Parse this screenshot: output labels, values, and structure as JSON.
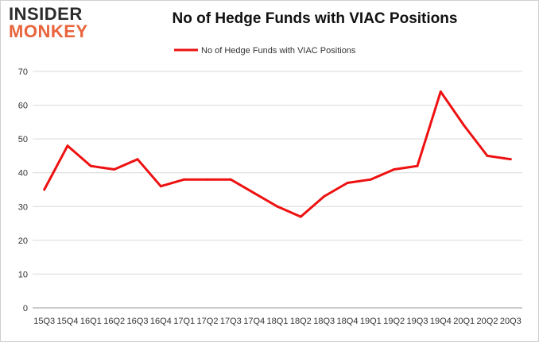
{
  "logo": {
    "top": "INSIDER",
    "bottom": "MONKEY"
  },
  "colors": {
    "line": "#ee1111",
    "grid": "#d9d9d9",
    "logo_accent": "#e8643c"
  },
  "chart_data": {
    "type": "line",
    "title": "No of Hedge Funds with VIAC Positions",
    "xlabel": "",
    "ylabel": "",
    "ylim": [
      0,
      70
    ],
    "yticks": [
      0,
      10,
      20,
      30,
      40,
      50,
      60,
      70
    ],
    "grid": true,
    "legend_position": "top-center",
    "categories": [
      "15Q3",
      "15Q4",
      "16Q1",
      "16Q2",
      "16Q3",
      "16Q4",
      "17Q1",
      "17Q2",
      "17Q3",
      "17Q4",
      "18Q1",
      "18Q2",
      "18Q3",
      "18Q4",
      "19Q1",
      "19Q2",
      "19Q3",
      "19Q4",
      "20Q1",
      "20Q2",
      "20Q3"
    ],
    "series": [
      {
        "name": "No of Hedge Funds with VIAC Positions",
        "values": [
          35,
          48,
          42,
          41,
          44,
          36,
          38,
          38,
          38,
          34,
          30,
          27,
          33,
          37,
          38,
          41,
          42,
          64,
          54,
          45,
          44
        ]
      }
    ]
  }
}
